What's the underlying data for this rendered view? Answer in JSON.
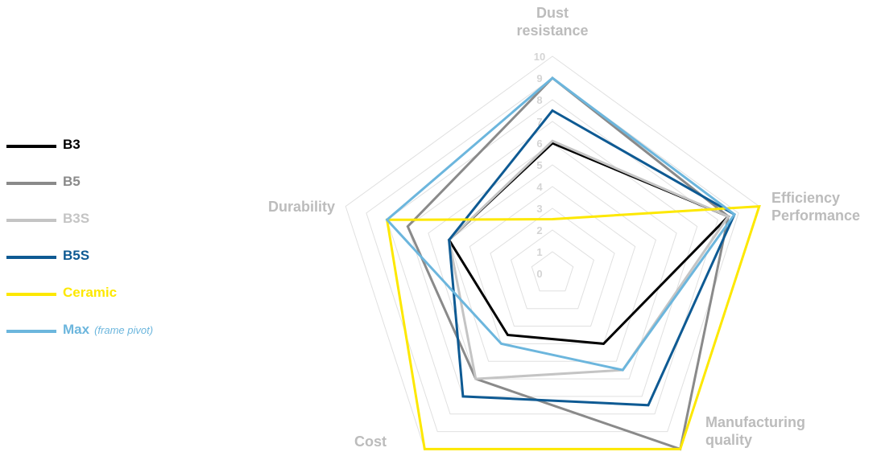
{
  "chart_data": {
    "type": "radar",
    "axes": [
      {
        "label_lines": [
          "Dust",
          "resistance"
        ]
      },
      {
        "label_lines": [
          "Efficiency",
          "Performance"
        ]
      },
      {
        "label_lines": [
          "Manufacturing",
          "quality"
        ]
      },
      {
        "label_lines": [
          "Cost"
        ]
      },
      {
        "label_lines": [
          "Durability"
        ]
      }
    ],
    "range": [
      0,
      10
    ],
    "ticks": [
      "0",
      "1",
      "2",
      "3",
      "4",
      "5",
      "6",
      "7",
      "8",
      "9",
      "10"
    ],
    "grid": true,
    "legend_position": "left",
    "series": [
      {
        "name": "B3",
        "note": "",
        "color": "#000000",
        "values": [
          6,
          8.5,
          4,
          3.5,
          5
        ]
      },
      {
        "name": "B5",
        "note": "",
        "color": "#8a8a8a",
        "values": [
          9,
          8.5,
          10,
          6,
          7
        ]
      },
      {
        "name": "B3S",
        "note": "",
        "color": "#c4c4c4",
        "values": [
          6.1,
          8.5,
          5.5,
          6,
          5
        ]
      },
      {
        "name": "B5S",
        "note": "",
        "color": "#0e5a93",
        "values": [
          7.5,
          8.8,
          7.5,
          7,
          5
        ]
      },
      {
        "name": "Ceramic",
        "note": "",
        "color": "#fde800",
        "values": [
          2.5,
          10,
          10,
          10,
          8
        ]
      },
      {
        "name": "Max",
        "note": "(frame pivot)",
        "color": "#6cb6dd",
        "values": [
          9,
          8.8,
          5.5,
          4,
          8
        ]
      }
    ]
  }
}
